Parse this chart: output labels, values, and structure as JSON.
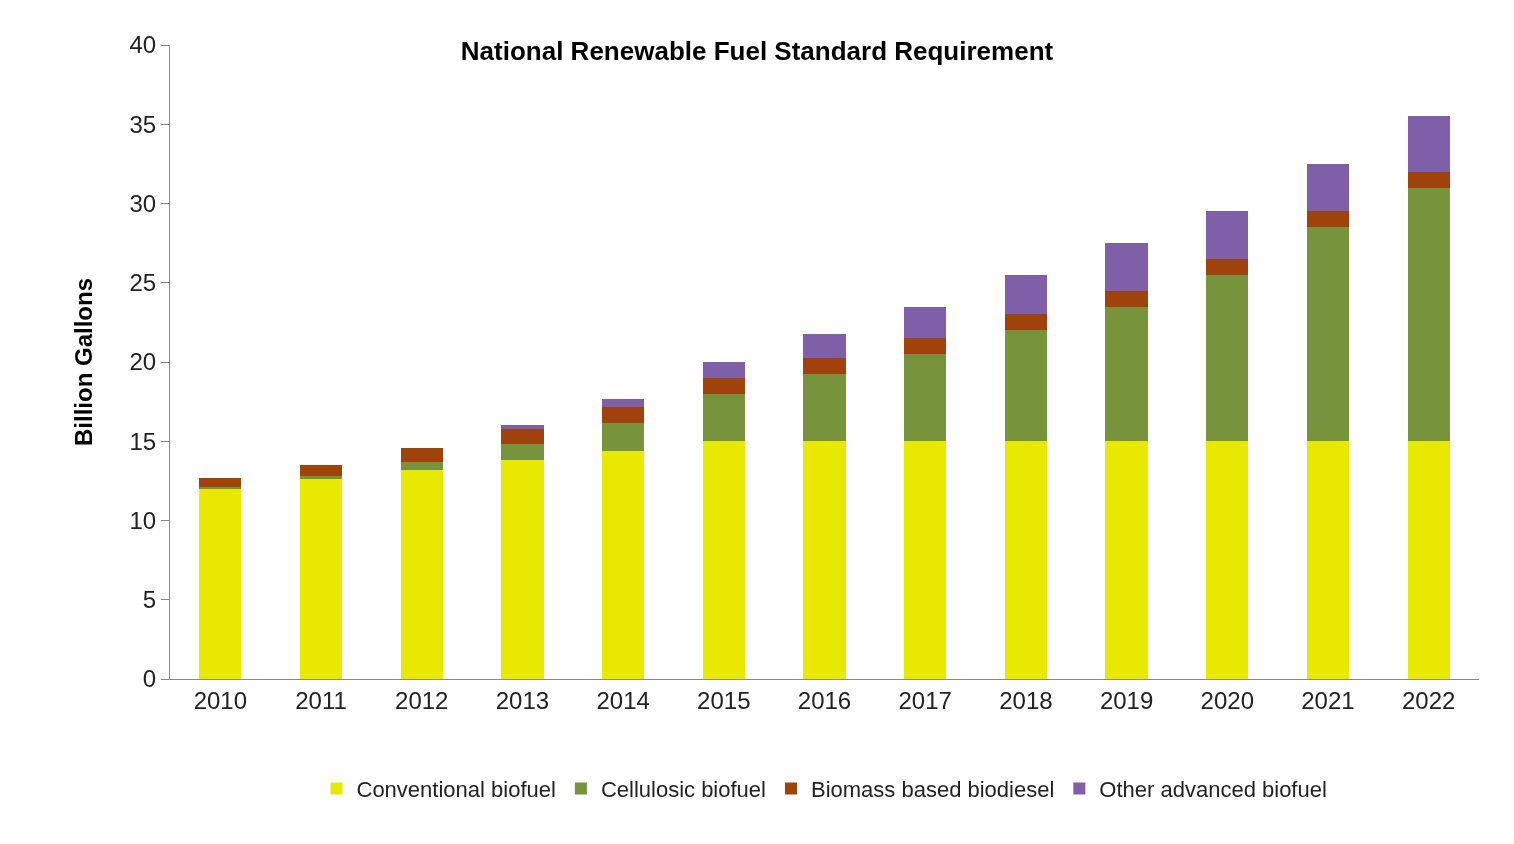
{
  "chart_data": {
    "type": "bar",
    "title": "National Renewable Fuel Standard Requirement",
    "ylabel": "Billion Gallons",
    "categories": [
      "2010",
      "2011",
      "2012",
      "2013",
      "2014",
      "2015",
      "2016",
      "2017",
      "2018",
      "2019",
      "2020",
      "2021",
      "2022"
    ],
    "stacked": true,
    "series": [
      {
        "name": "Conventional biofuel",
        "color": "#e8e800",
        "values": [
          12.0,
          12.6,
          13.2,
          13.8,
          14.4,
          15,
          15,
          15,
          15,
          15,
          15,
          15,
          15
        ]
      },
      {
        "name": "Cellulosic biofuel",
        "color": "#77933c",
        "values": [
          0.1,
          0.2,
          0.5,
          1.0,
          1.75,
          3.0,
          4.25,
          5.5,
          7.0,
          8.5,
          10.5,
          13.5,
          16.0
        ]
      },
      {
        "name": "Biomass based biodiesel",
        "color": "#a0420c",
        "values": [
          0.6,
          0.7,
          0.9,
          1.0,
          1.0,
          1.0,
          1.0,
          1.0,
          1.0,
          1.0,
          1.0,
          1.0,
          1.0
        ]
      },
      {
        "name": "Other advanced biofuel",
        "color": "#7f5fa8",
        "values": [
          0,
          0,
          0,
          0.2,
          0.5,
          1.0,
          1.5,
          2.0,
          2.5,
          3.0,
          3.0,
          3.0,
          3.5
        ]
      }
    ],
    "ylim": [
      0,
      40
    ],
    "yticks": [
      0,
      5,
      10,
      15,
      20,
      25,
      30,
      35,
      40
    ],
    "legend": "bottom"
  }
}
